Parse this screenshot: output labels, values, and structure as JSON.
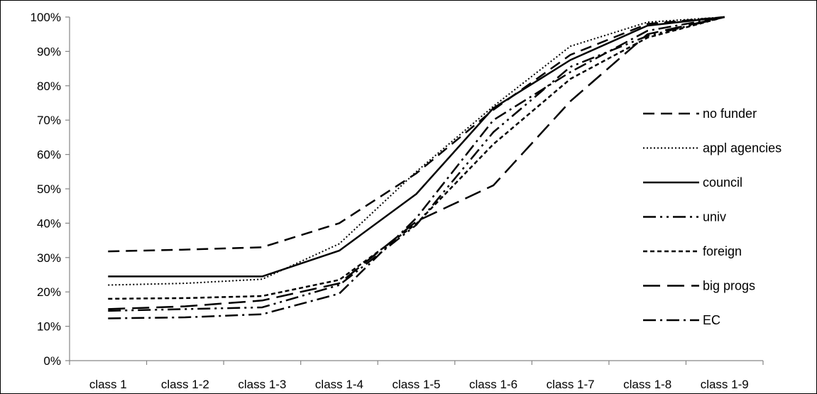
{
  "chart_data": {
    "type": "line",
    "title": "",
    "xlabel": "",
    "ylabel": "",
    "categories": [
      "class 1",
      "class 1-2",
      "class 1-3",
      "class 1-4",
      "class 1-5",
      "class 1-6",
      "class 1-7",
      "class 1-8",
      "class 1-9"
    ],
    "ylim": [
      0,
      100
    ],
    "y_ticks": [
      "0%",
      "10%",
      "20%",
      "30%",
      "40%",
      "50%",
      "60%",
      "70%",
      "80%",
      "90%",
      "100%"
    ],
    "grid": false,
    "legend_position": "right",
    "series": [
      {
        "name": "no funder",
        "dash": "long-dash",
        "values": [
          31.8,
          32.3,
          33,
          40,
          54.5,
          73,
          89,
          98,
          100
        ]
      },
      {
        "name": "appl agencies",
        "dash": "dotted",
        "values": [
          22,
          22.5,
          23.7,
          34,
          55,
          74,
          91.5,
          98.5,
          100
        ]
      },
      {
        "name": "council",
        "dash": "solid",
        "values": [
          24.5,
          24.5,
          24.5,
          32,
          48.5,
          73.5,
          87.5,
          97.5,
          100
        ]
      },
      {
        "name": "univ",
        "dash": "dash-dot-dot",
        "values": [
          14.5,
          15,
          15.5,
          22,
          39.5,
          66.5,
          85.5,
          94.5,
          100
        ]
      },
      {
        "name": "foreign",
        "dash": "short-dash",
        "values": [
          18,
          18.2,
          18.8,
          23.5,
          39.8,
          63,
          82,
          94,
          100
        ]
      },
      {
        "name": "big progs",
        "dash": "extra-long-dash",
        "values": [
          15,
          15.8,
          17.5,
          22.5,
          40.5,
          51,
          75.5,
          95,
          100
        ]
      },
      {
        "name": "EC",
        "dash": "dash-dot",
        "values": [
          12.3,
          12.6,
          13.5,
          19.5,
          41.5,
          70,
          84,
          96,
          100
        ]
      }
    ]
  }
}
